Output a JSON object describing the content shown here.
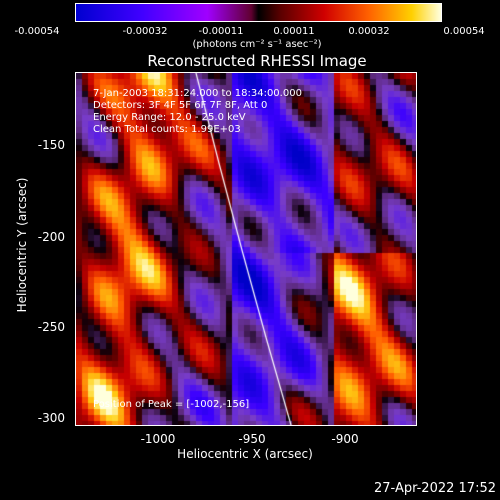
{
  "colorbar": {
    "ticks": [
      "-0.00054",
      "-0.00032",
      "-0.00011",
      "0.00011",
      "0.00032",
      "0.00054"
    ],
    "units": "(photons cm⁻² s⁻¹ asec⁻²)"
  },
  "title": "Reconstructed RHESSI Image",
  "info": {
    "time": "7-Jan-2003 18:31:24.000 to 18:34:00.000",
    "detectors": "Detectors: 3F 4F 5F 6F 7F 8F, Att 0",
    "energy": "Energy Range: 12.0 - 25.0 keV",
    "clean": "Clean     Total counts: 1.99E+03",
    "peak": "Position of Peak = [-1002,-156]"
  },
  "axes": {
    "xlabel": "Heliocentric X (arcsec)",
    "ylabel": "Heliocentric Y (arcsec)",
    "xticks": [
      "-1000",
      "-950",
      "-900"
    ],
    "yticks": [
      "-150",
      "-200",
      "-250",
      "-300"
    ]
  },
  "timestamp": "27-Apr-2022 17:52"
}
